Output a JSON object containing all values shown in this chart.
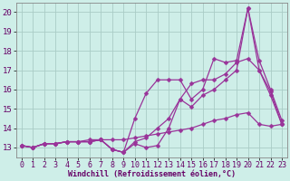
{
  "xlabel": "Windchill (Refroidissement éolien,°C)",
  "bg_color": "#ceeee8",
  "grid_color": "#aaccc6",
  "line_color": "#993399",
  "xlim": [
    -0.5,
    23.5
  ],
  "ylim": [
    12.5,
    20.5
  ],
  "xticks": [
    0,
    1,
    2,
    3,
    4,
    5,
    6,
    7,
    8,
    9,
    10,
    11,
    12,
    13,
    14,
    15,
    16,
    17,
    18,
    19,
    20,
    21,
    22,
    23
  ],
  "yticks": [
    13,
    14,
    15,
    16,
    17,
    18,
    19,
    20
  ],
  "line1_x": [
    0,
    1,
    2,
    3,
    4,
    5,
    6,
    7,
    8,
    9,
    10,
    11,
    12,
    13,
    14,
    15,
    16,
    17,
    18,
    19,
    20,
    21,
    22,
    23
  ],
  "line1_y": [
    13.1,
    13.0,
    13.2,
    13.2,
    13.3,
    13.3,
    13.4,
    13.4,
    13.4,
    13.4,
    13.5,
    13.6,
    13.7,
    13.8,
    13.9,
    14.0,
    14.2,
    14.4,
    14.5,
    14.7,
    14.8,
    14.2,
    14.1,
    14.2
  ],
  "line2_x": [
    0,
    1,
    2,
    3,
    4,
    5,
    6,
    7,
    8,
    9,
    10,
    11,
    12,
    13,
    14,
    15,
    16,
    17,
    18,
    19,
    20,
    21,
    22,
    23
  ],
  "line2_y": [
    13.1,
    13.0,
    13.2,
    13.2,
    13.3,
    13.3,
    13.3,
    13.4,
    12.9,
    12.75,
    13.2,
    13.0,
    13.1,
    14.0,
    15.5,
    15.1,
    15.7,
    16.0,
    16.5,
    17.0,
    20.2,
    17.0,
    15.7,
    14.2
  ],
  "line3_x": [
    0,
    1,
    2,
    3,
    4,
    5,
    6,
    7,
    8,
    9,
    10,
    11,
    12,
    13,
    14,
    15,
    16,
    17,
    18,
    19,
    20,
    21,
    22,
    23
  ],
  "line3_y": [
    13.1,
    13.0,
    13.2,
    13.2,
    13.3,
    13.3,
    13.3,
    13.4,
    12.9,
    12.75,
    14.5,
    15.8,
    16.5,
    16.5,
    16.5,
    15.5,
    16.0,
    17.6,
    17.4,
    17.5,
    20.2,
    17.5,
    16.0,
    14.4
  ],
  "line4_x": [
    0,
    1,
    2,
    3,
    4,
    5,
    6,
    7,
    8,
    9,
    10,
    11,
    12,
    13,
    14,
    15,
    16,
    17,
    18,
    19,
    20,
    21,
    22,
    23
  ],
  "line4_y": [
    13.1,
    13.0,
    13.2,
    13.2,
    13.3,
    13.3,
    13.3,
    13.4,
    12.9,
    12.75,
    13.3,
    13.5,
    14.0,
    14.5,
    15.5,
    16.3,
    16.5,
    16.5,
    16.8,
    17.4,
    17.6,
    17.0,
    15.9,
    14.2
  ],
  "markersize": 2.5,
  "linewidth": 0.9,
  "xlabel_fontsize": 6.0,
  "tick_fontsize": 6.0
}
